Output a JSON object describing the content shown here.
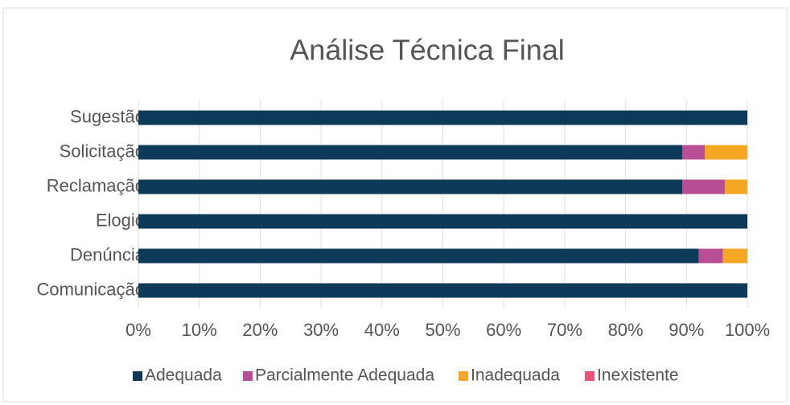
{
  "chart_data": {
    "type": "stacked_barh",
    "title": "Análise Técnica Final",
    "categories": [
      "Sugestão",
      "Solicitação",
      "Reclamação",
      "Elogio",
      "Denúncia",
      "Comunicação"
    ],
    "series": [
      {
        "name": "Adequada",
        "color": "#0e3a5a",
        "values": [
          100,
          89.3,
          89.3,
          100,
          92,
          100
        ]
      },
      {
        "name": "Parcialmente Adequada",
        "color": "#b84f96",
        "values": [
          0,
          3.7,
          7,
          0,
          4,
          0
        ]
      },
      {
        "name": "Inadequada",
        "color": "#f5a623",
        "values": [
          0,
          7,
          3.7,
          0,
          4,
          0
        ]
      },
      {
        "name": "Inexistente",
        "color": "#e8547a",
        "values": [
          0,
          0,
          0,
          0,
          0,
          0
        ]
      }
    ],
    "xlim": [
      0,
      100
    ],
    "xticks": [
      {
        "value": 0,
        "label": "0%"
      },
      {
        "value": 10,
        "label": "10%"
      },
      {
        "value": 20,
        "label": "20%"
      },
      {
        "value": 30,
        "label": "30%"
      },
      {
        "value": 40,
        "label": "40%"
      },
      {
        "value": 50,
        "label": "50%"
      },
      {
        "value": 60,
        "label": "60%"
      },
      {
        "value": 70,
        "label": "70%"
      },
      {
        "value": 80,
        "label": "80%"
      },
      {
        "value": 90,
        "label": "90%"
      },
      {
        "value": 100,
        "label": "100%"
      }
    ],
    "grid": true,
    "legend": "bottom"
  }
}
